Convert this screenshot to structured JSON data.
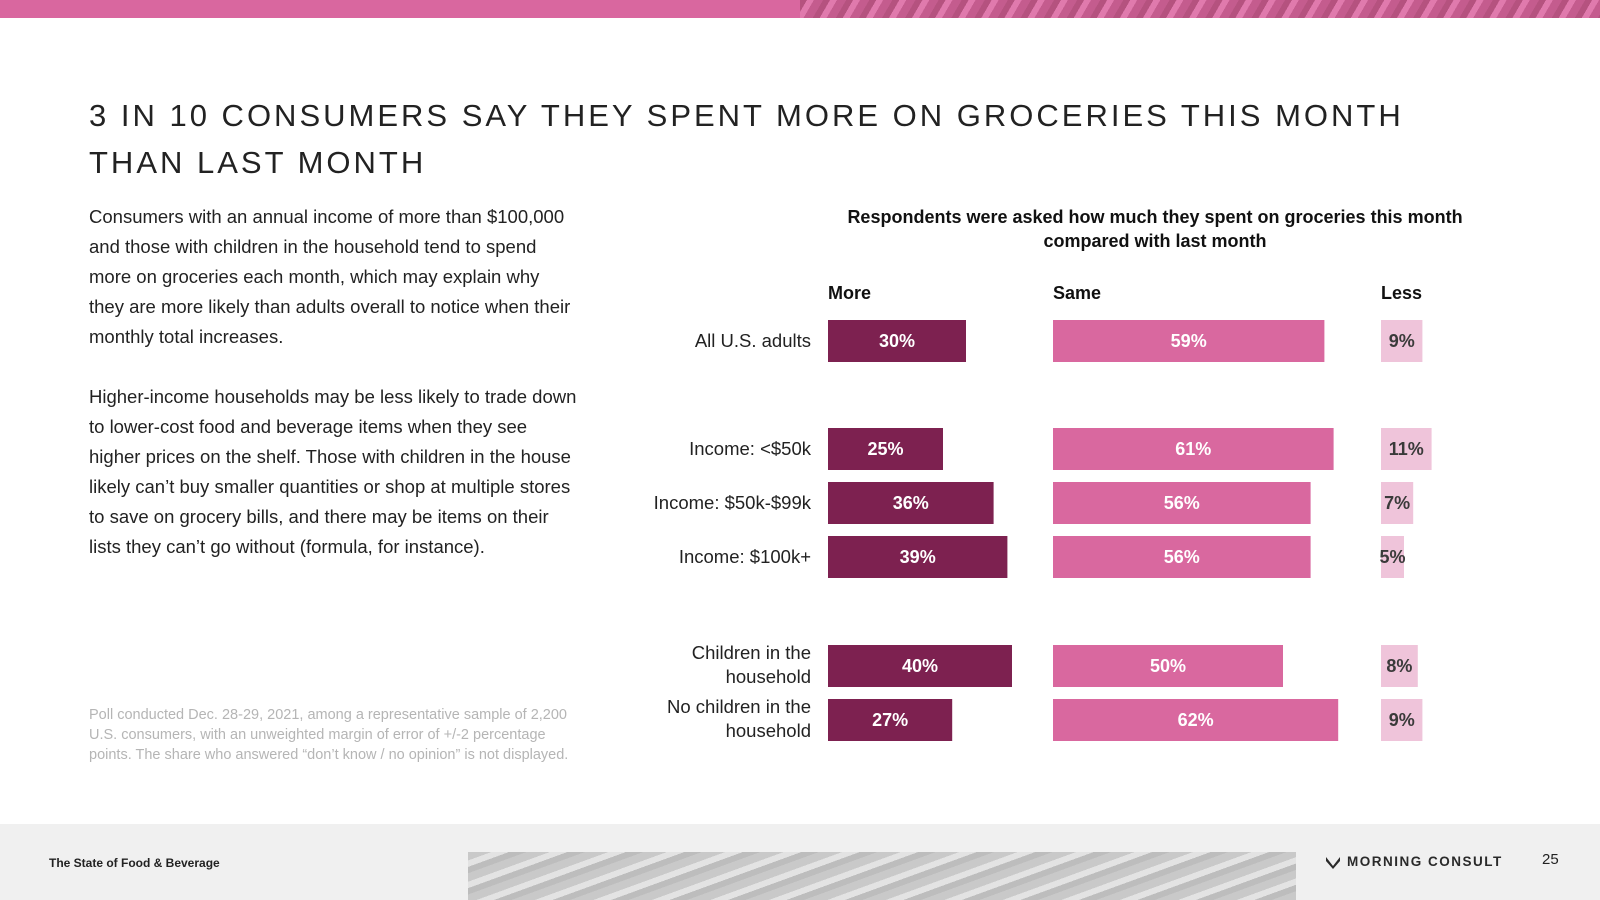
{
  "title": "3 IN 10 CONSUMERS SAY THEY SPENT MORE ON GROCERIES THIS MONTH THAN LAST MONTH",
  "paragraphs": [
    "Consumers with an annual income of more than $100,000 and those with children in the household tend to spend more on groceries each month, which may explain why they are more likely than adults overall to notice when their monthly total increases.",
    "Higher-income households may be less likely to trade down to lower-cost food and beverage items when they see higher prices on the shelf. Those with children in the house likely can’t buy smaller quantities or shop at multiple stores to save on grocery bills, and there may be items on their lists they can’t go without (formula, for instance)."
  ],
  "footnote": "Poll conducted Dec. 28-29, 2021, among a representative sample of 2,200 U.S. consumers, with an unweighted margin of error of +/-2 percentage points. The share who answered “don’t know / no opinion” is not displayed.",
  "chart_data": {
    "type": "bar",
    "title": "Respondents were asked how much they spent on groceries this month compared with last month",
    "categories": [
      "All U.S. adults",
      "Income: <$50k",
      "Income: $50k-$99k",
      "Income: $100k+",
      "Children in the household",
      "No children in the household"
    ],
    "series": [
      {
        "name": "More",
        "values": [
          30,
          25,
          36,
          39,
          40,
          27
        ],
        "color": "#7d2150",
        "label_color": "#ffffff"
      },
      {
        "name": "Same",
        "values": [
          59,
          61,
          56,
          56,
          50,
          62
        ],
        "color": "#d9689f",
        "label_color": "#ffffff"
      },
      {
        "name": "Less",
        "values": [
          9,
          11,
          7,
          5,
          8,
          9
        ],
        "color": "#efc4da",
        "label_color": "#3a3a3a"
      }
    ],
    "value_suffix": "%"
  },
  "footer": {
    "report_name": "The State of Food & Beverage",
    "brand": "MORNING CONSULT",
    "page_number": "25"
  }
}
